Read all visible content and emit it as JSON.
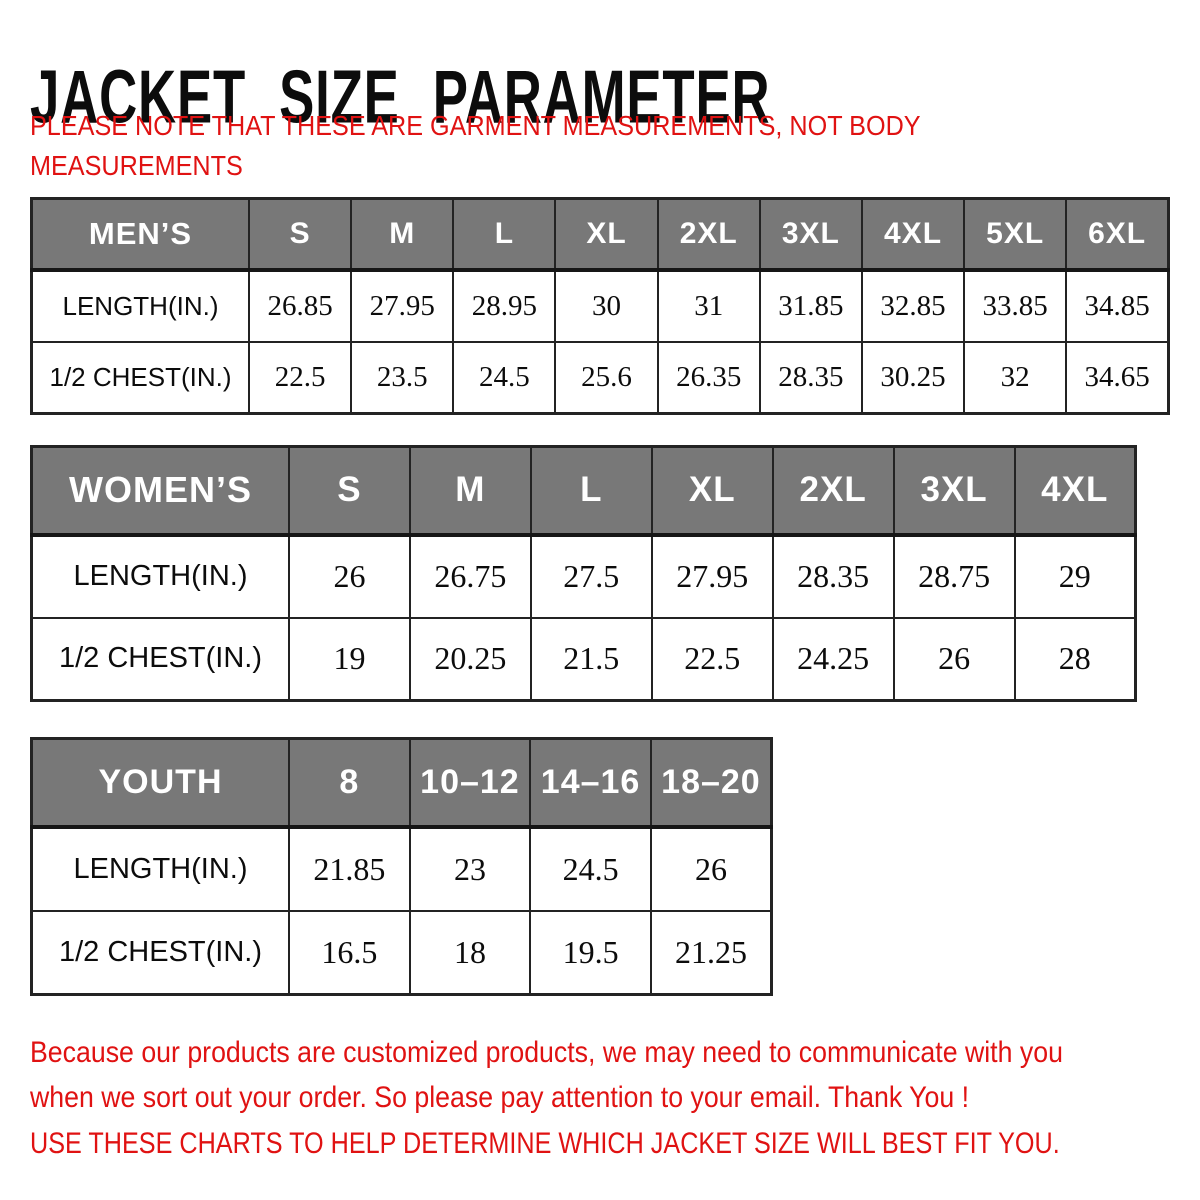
{
  "title": "JACKET SIZE PARAMETER",
  "note": {
    "line1": "PLEASE NOTE THAT THESE ARE GARMENT MEASUREMENTS, NOT BODY",
    "line2": "MEASUREMENTS"
  },
  "tables": [
    {
      "id": "mens",
      "group_label": "MEN’S",
      "sizes": [
        "S",
        "M",
        "L",
        "XL",
        "2XL",
        "3XL",
        "4XL",
        "5XL",
        "6XL"
      ],
      "rows": [
        {
          "label": "LENGTH(IN.)",
          "values": [
            "26.85",
            "27.95",
            "28.95",
            "30",
            "31",
            "31.85",
            "32.85",
            "33.85",
            "34.85"
          ]
        },
        {
          "label": "1/2 CHEST(IN.)",
          "values": [
            "22.5",
            "23.5",
            "24.5",
            "25.6",
            "26.35",
            "28.35",
            "30.25",
            "32",
            "34.65"
          ]
        }
      ]
    },
    {
      "id": "womens",
      "group_label": "WOMEN’S",
      "sizes": [
        "S",
        "M",
        "L",
        "XL",
        "2XL",
        "3XL",
        "4XL"
      ],
      "rows": [
        {
          "label": "LENGTH(IN.)",
          "values": [
            "26",
            "26.75",
            "27.5",
            "27.95",
            "28.35",
            "28.75",
            "29"
          ]
        },
        {
          "label": "1/2 CHEST(IN.)",
          "values": [
            "19",
            "20.25",
            "21.5",
            "22.5",
            "24.25",
            "26",
            "28"
          ]
        }
      ]
    },
    {
      "id": "youth",
      "group_label": "YOUTH",
      "sizes": [
        "8",
        "10–12",
        "14–16",
        "18–20"
      ],
      "rows": [
        {
          "label": "LENGTH(IN.)",
          "values": [
            "21.85",
            "23",
            "24.5",
            "26"
          ]
        },
        {
          "label": "1/2 CHEST(IN.)",
          "values": [
            "16.5",
            "18",
            "19.5",
            "21.25"
          ]
        }
      ]
    }
  ],
  "footer": {
    "para_line1": "Because our products are customized products, we may need to communicate with you",
    "para_line2": "when we sort out your order. So please pay attention to your email. Thank You !",
    "caps_line": "USE THESE CHARTS TO HELP DETERMINE WHICH JACKET SIZE WILL BEST FIT YOU."
  },
  "colors": {
    "accent_red": "#e01212",
    "header_gray": "#787878",
    "border": "#232323",
    "text": "#0c0c0c"
  }
}
